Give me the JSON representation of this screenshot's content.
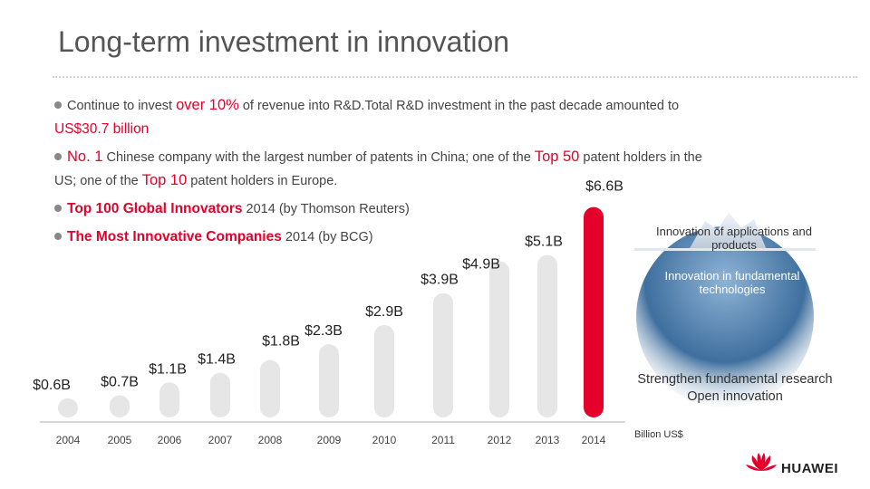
{
  "slide": {
    "title": "Long-term investment in innovation",
    "bullets": {
      "b1": {
        "pre": "Continue to invest ",
        "hl": "over 10%",
        "mid": " of revenue into R&D.Total R&D investment in the past decade amounted to",
        "hl2": "US$30.7 billion"
      },
      "b2": {
        "hl": "No. 1",
        "mid": " Chinese company with the largest number of patents in China; one of the ",
        "hl2": "Top 50",
        "post": " patent holders in the",
        "line2_pre": "US; one of the ",
        "hl3": "Top 10",
        "line2_post": " patent holders in Europe."
      },
      "b3": {
        "hl": "Top 100 Global Innovators",
        "post": " 2014 (by Thomson Reuters)"
      },
      "b4": {
        "hl": "The Most Innovative Companies",
        "post": " 2014 (by BCG)"
      }
    },
    "iceberg": {
      "top_label": "Innovation of applications and products",
      "mid_label": "Innovation in fundamental technologies",
      "bottom_label_1": "Strengthen fundamental research",
      "bottom_label_2": "Open innovation"
    },
    "unit_label": "Billion US$",
    "logo_text": "HUAWEI",
    "colors": {
      "bar": "#e6e6e6",
      "highlight_bar": "#e4002b",
      "accent": "#e4002b"
    }
  },
  "chart_data": {
    "type": "bar",
    "categories": [
      "2004",
      "2005",
      "2006",
      "2007",
      "2008",
      "2009",
      "2010",
      "2011",
      "2012",
      "2013",
      "2014"
    ],
    "values": [
      0.6,
      0.7,
      1.1,
      1.4,
      1.8,
      2.3,
      2.9,
      3.9,
      4.9,
      5.1,
      6.6
    ],
    "data_labels": [
      "$0.6B",
      "$0.7B",
      "$1.1B",
      "$1.4B",
      "$1.8B",
      "$2.3B",
      "$2.9B",
      "$3.9B",
      "$4.9B",
      "$5.1B",
      "$6.6B"
    ],
    "highlight_index": 10,
    "ylabel": "Billion US$",
    "grid": false
  }
}
